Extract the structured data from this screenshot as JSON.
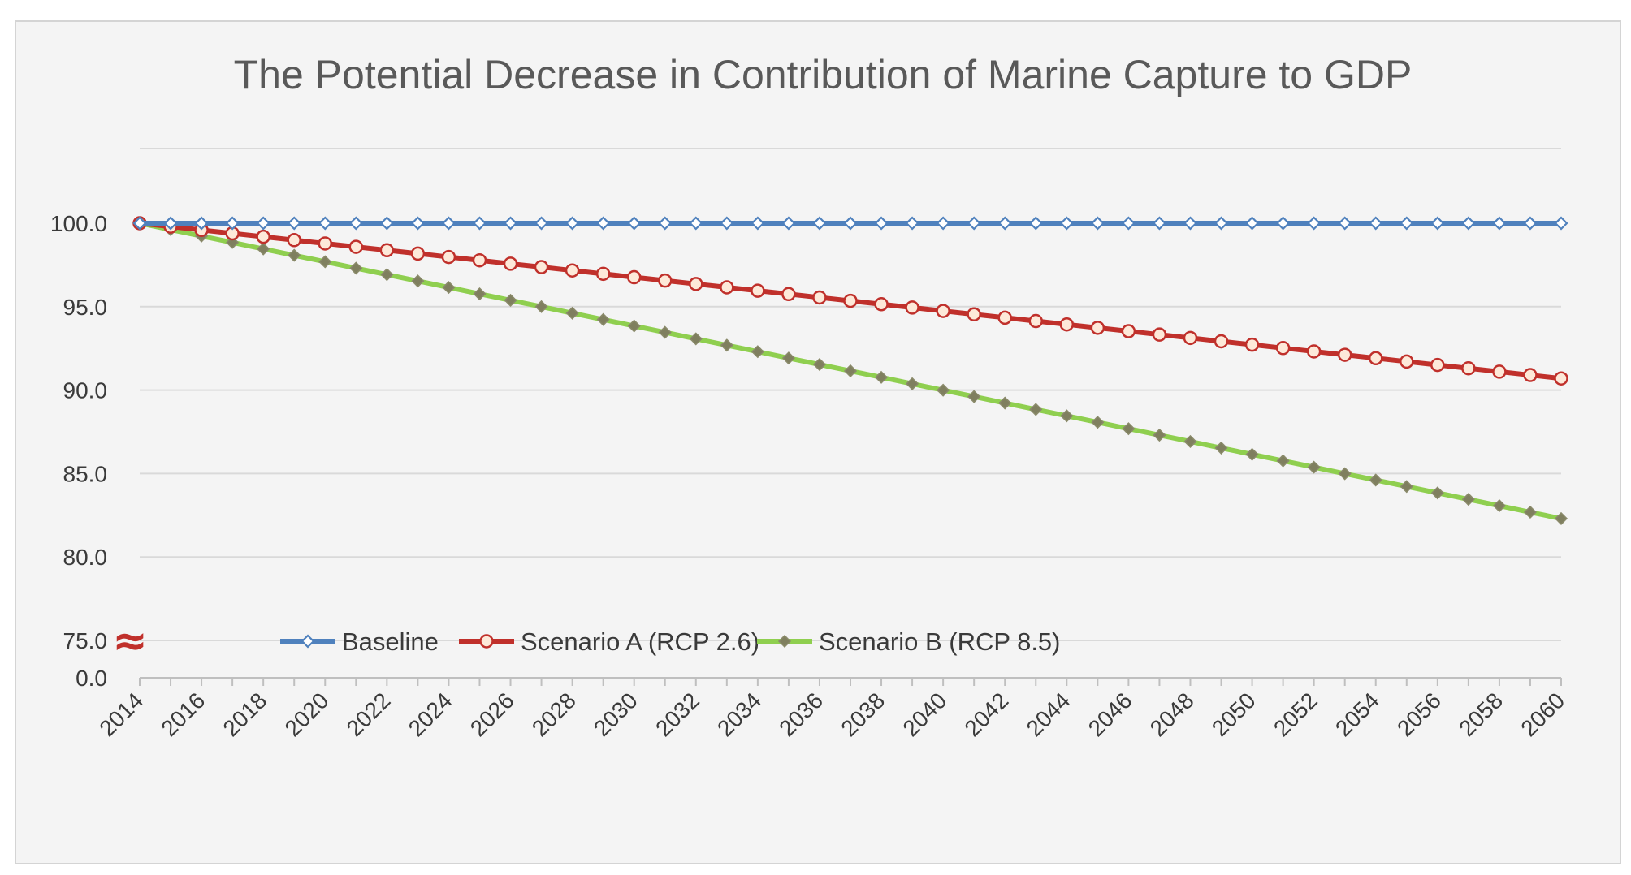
{
  "chart_data": {
    "type": "line",
    "title": "The Potential Decrease in Contribution of Marine Capture to GDP",
    "xlabel": "",
    "ylabel": "",
    "y_tick_labels": [
      "0.0",
      "75.0",
      "80.0",
      "85.0",
      "90.0",
      "95.0",
      "100.0"
    ],
    "y_ticks": [
      0,
      75,
      80,
      85,
      90,
      95,
      100
    ],
    "axis_break_symbol": "≈",
    "x_tick_labels": [
      "2014",
      "2016",
      "2018",
      "2020",
      "2022",
      "2024",
      "2026",
      "2028",
      "2030",
      "2032",
      "2034",
      "2036",
      "2038",
      "2040",
      "2042",
      "2044",
      "2046",
      "2048",
      "2050",
      "2052",
      "2054",
      "2056",
      "2058",
      "2060"
    ],
    "x_start": 2014,
    "x_end": 2060,
    "grid": true,
    "legend_position": "bottom",
    "series": [
      {
        "name": "Baseline",
        "color": "#4f81bd",
        "marker": "diamond-open",
        "start": 100.0,
        "end": 100.0
      },
      {
        "name": "Scenario A (RCP 2.6)",
        "color": "#c0302b",
        "marker": "circle-open",
        "start": 100.0,
        "end": 90.7
      },
      {
        "name": "Scenario B (RCP 8.5)",
        "color": "#8fcf4f",
        "marker": "diamond-filled",
        "start": 100.0,
        "end": 82.3
      }
    ]
  }
}
